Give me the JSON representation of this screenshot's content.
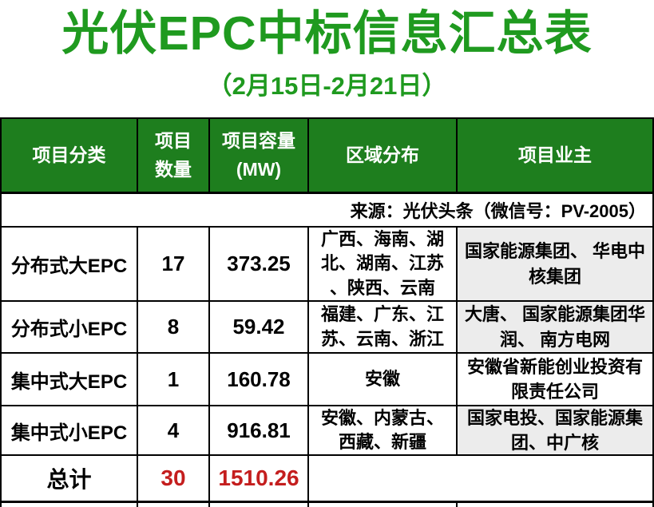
{
  "title": "光伏EPC中标信息汇总表",
  "subtitle": "（2月15日-2月21日）",
  "colors": {
    "title_green": "#1F9A1F",
    "header_green": "#1E7E1E",
    "owner_cell_gray": "#ECECEC",
    "total_red": "#C41E1E",
    "border_black": "#000000"
  },
  "table": {
    "headers": [
      "项目分类",
      "项目\n数量",
      "项目容量\n(MW)",
      "区域分布",
      "项目业主"
    ],
    "source_note": "来源：光伏头条（微信号：PV-2005）",
    "rows": [
      {
        "category": "分布式大EPC",
        "count": "17",
        "capacity": "373.25",
        "regions": "广西、海南、湖\n北、湖南、江苏\n、陕西、云南",
        "owners": "国家能源集团、 华电中\n核集团"
      },
      {
        "category": "分布式小EPC",
        "count": "8",
        "capacity": "59.42",
        "regions": "福建、广东、江\n苏、云南、浙江",
        "owners": "大唐、 国家能源集团华\n润、 南方电网"
      },
      {
        "category": "集中式大EPC",
        "count": "1",
        "capacity": "160.78",
        "regions": "安徽",
        "owners": "安徽省新能创业投资有\n限责任公司"
      },
      {
        "category": "集中式小EPC",
        "count": "4",
        "capacity": "916.81",
        "regions": "安徽、内蒙古、\n西藏、新疆",
        "owners": "国家电投、国家能源集\n团、中广核"
      }
    ],
    "total": {
      "label": "总计",
      "count": "30",
      "capacity": "1510.26"
    }
  }
}
